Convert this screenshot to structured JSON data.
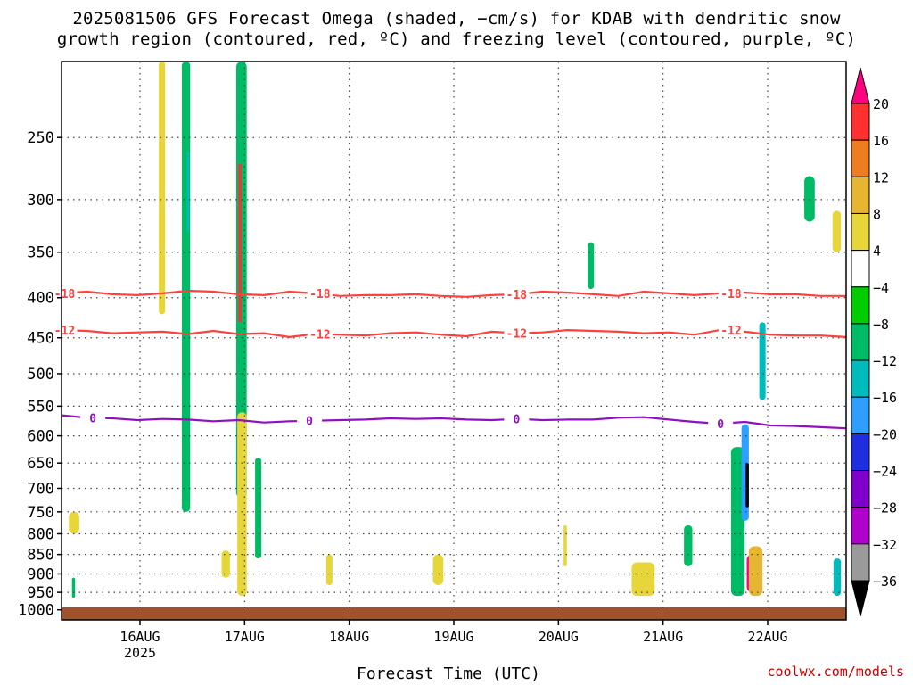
{
  "title_line1": "2025081506 GFS Forecast Omega (shaded, −cm/s) for KDAB with dendritic snow",
  "title_line2": "growth region (contoured, red, ºC) and freezing level (contoured, purple, ºC)",
  "credit": "coolwx.com/models",
  "chart_data": {
    "type": "heatmap",
    "xlabel": "Forecast Time (UTC)",
    "ylabel": "",
    "x_ticks": [
      "16AUG",
      "17AUG",
      "18AUG",
      "19AUG",
      "20AUG",
      "21AUG",
      "22AUG"
    ],
    "x_year_label": "2025",
    "xlim": [
      "2025-08-15 06Z",
      "2025-08-22 18Z"
    ],
    "y_ticks": [
      250,
      300,
      350,
      400,
      450,
      500,
      550,
      600,
      650,
      700,
      750,
      800,
      850,
      900,
      950,
      1000
    ],
    "ylim": [
      200,
      1030
    ],
    "y_scale": "log (pressure, hPa)",
    "grid": true,
    "colorbar": {
      "ticks": [
        20,
        16,
        12,
        8,
        4,
        -4,
        -8,
        -12,
        -16,
        -20,
        -24,
        -28,
        -32,
        -36
      ],
      "colors": [
        "#ff0080",
        "#ff3030",
        "#ee7d22",
        "#e6b633",
        "#e6d63a",
        "#ffffff",
        "#00cc00",
        "#00bb66",
        "#00bbbb",
        "#2f9fff",
        "#1f2fe0",
        "#8000cc",
        "#b000cc",
        "#9a9a9a",
        "#000000"
      ]
    },
    "contours": [
      {
        "label": "-18",
        "color": "#ff4040",
        "pressure": [
          395,
          393,
          396,
          397,
          395,
          392,
          393,
          396,
          397,
          393,
          395,
          398,
          397,
          397,
          396,
          398,
          399,
          397,
          396,
          393,
          394,
          396,
          398,
          393,
          395,
          397,
          395,
          394,
          396,
          396,
          398,
          398
        ],
        "label_days": [
          15.28,
          17.72,
          19.6,
          21.65
        ]
      },
      {
        "label": "-12",
        "color": "#ff4040",
        "pressure": [
          440,
          441,
          444,
          443,
          442,
          445,
          441,
          445,
          444,
          449,
          445,
          446,
          447,
          444,
          443,
          446,
          448,
          442,
          444,
          443,
          440,
          441,
          442,
          444,
          443,
          446,
          440,
          442,
          446,
          447,
          447,
          449
        ],
        "label_days": [
          15.28,
          17.72,
          19.6,
          21.65
        ]
      },
      {
        "label": "0",
        "color": "#9010c0",
        "pressure": [
          565,
          569,
          570,
          573,
          571,
          572,
          575,
          573,
          577,
          575,
          574,
          573,
          572,
          570,
          571,
          570,
          572,
          573,
          571,
          573,
          572,
          572,
          569,
          568,
          572,
          576,
          579,
          576,
          582,
          583,
          585,
          587
        ],
        "label_days": [
          15.55,
          17.62,
          19.6,
          21.55
        ]
      }
    ],
    "shaded_regions": [
      {
        "value": 6,
        "t": [
          15.32,
          15.42
        ],
        "p": [
          750,
          800
        ]
      },
      {
        "value": -8,
        "t": [
          15.35,
          15.38
        ],
        "p": [
          910,
          965
        ]
      },
      {
        "value": 6,
        "t": [
          16.18,
          16.24
        ],
        "p": [
          200,
          420
        ]
      },
      {
        "value": -8,
        "t": [
          16.4,
          16.48
        ],
        "p": [
          200,
          750
        ]
      },
      {
        "value": -12,
        "t": [
          16.45,
          16.47
        ],
        "p": [
          260,
          330
        ]
      },
      {
        "value": 6,
        "t": [
          16.78,
          16.86
        ],
        "p": [
          840,
          910
        ]
      },
      {
        "value": -8,
        "t": [
          16.92,
          17.02
        ],
        "p": [
          200,
          720
        ]
      },
      {
        "value": 16,
        "t": [
          16.94,
          16.97
        ],
        "p": [
          270,
          430
        ]
      },
      {
        "value": 6,
        "t": [
          16.93,
          17.02
        ],
        "p": [
          560,
          960
        ]
      },
      {
        "value": -8,
        "t": [
          17.1,
          17.16
        ],
        "p": [
          640,
          860
        ]
      },
      {
        "value": 6,
        "t": [
          17.78,
          17.84
        ],
        "p": [
          850,
          930
        ]
      },
      {
        "value": 6,
        "t": [
          18.8,
          18.9
        ],
        "p": [
          850,
          930
        ]
      },
      {
        "value": 6,
        "t": [
          20.05,
          20.08
        ],
        "p": [
          780,
          880
        ]
      },
      {
        "value": -8,
        "t": [
          20.28,
          20.34
        ],
        "p": [
          340,
          390
        ]
      },
      {
        "value": 6,
        "t": [
          20.7,
          20.92
        ],
        "p": [
          870,
          960
        ]
      },
      {
        "value": -8,
        "t": [
          21.2,
          21.28
        ],
        "p": [
          780,
          880
        ]
      },
      {
        "value": -8,
        "t": [
          21.65,
          21.78
        ],
        "p": [
          620,
          960
        ]
      },
      {
        "value": -16,
        "t": [
          21.75,
          21.82
        ],
        "p": [
          580,
          770
        ]
      },
      {
        "value": -36,
        "t": [
          21.79,
          21.82
        ],
        "p": [
          650,
          740
        ]
      },
      {
        "value": 20,
        "t": [
          21.8,
          21.94
        ],
        "p": [
          850,
          950
        ]
      },
      {
        "value": 10,
        "t": [
          21.82,
          21.95
        ],
        "p": [
          830,
          960
        ]
      },
      {
        "value": -12,
        "t": [
          21.92,
          21.98
        ],
        "p": [
          430,
          540
        ]
      },
      {
        "value": -8,
        "t": [
          22.35,
          22.45
        ],
        "p": [
          280,
          320
        ]
      },
      {
        "value": 6,
        "t": [
          22.62,
          22.7
        ],
        "p": [
          310,
          350
        ]
      },
      {
        "value": -12,
        "t": [
          22.63,
          22.7
        ],
        "p": [
          860,
          960
        ]
      }
    ]
  }
}
